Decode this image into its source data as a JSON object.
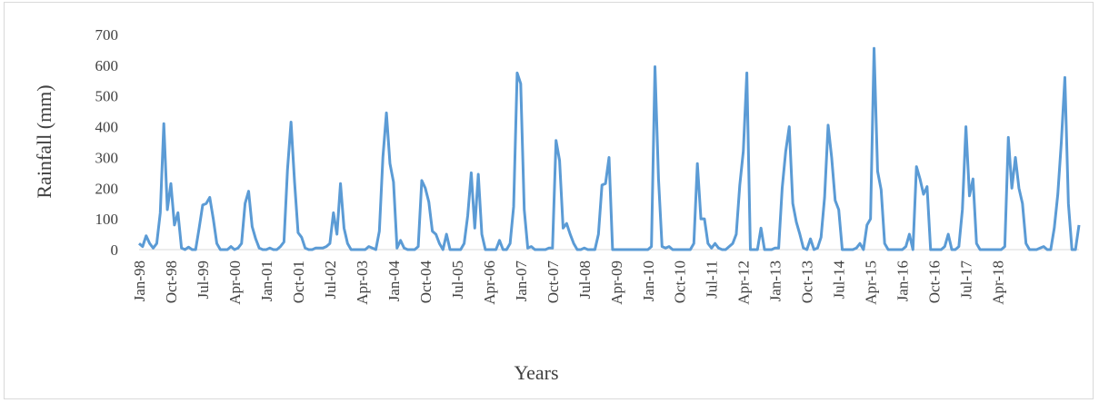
{
  "chart_data": {
    "type": "line",
    "title": "",
    "xlabel": "Years",
    "ylabel": "Rainfall (mm)",
    "ylim": [
      0,
      700
    ],
    "yticks": [
      0,
      100,
      200,
      300,
      400,
      500,
      600,
      700
    ],
    "grid": false,
    "legend": "none",
    "line_color": "#5b9bd5",
    "x_tick_labels": [
      "Jan-98",
      "Oct-98",
      "Jul-99",
      "Apr-00",
      "Jan-01",
      "Oct-01",
      "Jul-02",
      "Apr-03",
      "Jan-04",
      "Oct-04",
      "Jul-05",
      "Apr-06",
      "Jan-07",
      "Oct-07",
      "Jul-08",
      "Apr-09",
      "Jan-10",
      "Oct-10",
      "Jul-11",
      "Apr-12",
      "Jan-13",
      "Oct-13",
      "Jul-14",
      "Apr-15",
      "Jan-16",
      "Oct-16",
      "Jul-17",
      "Apr-18"
    ],
    "series": [
      {
        "values": [
          20,
          10,
          45,
          20,
          5,
          20,
          120,
          410,
          130,
          215,
          80,
          120,
          5,
          0,
          8,
          0,
          0,
          70,
          145,
          150,
          170,
          100,
          20,
          0,
          0,
          0,
          10,
          0,
          5,
          20,
          150,
          190,
          75,
          35,
          5,
          0,
          0,
          5,
          0,
          0,
          10,
          25,
          260,
          415,
          220,
          55,
          40,
          5,
          0,
          0,
          5,
          5,
          5,
          10,
          20,
          120,
          50,
          215,
          70,
          20,
          0,
          0,
          0,
          0,
          0,
          10,
          5,
          0,
          60,
          300,
          445,
          280,
          220,
          5,
          30,
          5,
          0,
          0,
          0,
          10,
          225,
          200,
          155,
          60,
          50,
          20,
          0,
          50,
          0,
          0,
          0,
          0,
          20,
          110,
          250,
          70,
          245,
          50,
          0,
          0,
          0,
          0,
          30,
          0,
          0,
          20,
          140,
          575,
          540,
          130,
          5,
          10,
          0,
          0,
          0,
          0,
          5,
          5,
          355,
          290,
          70,
          85,
          50,
          20,
          0,
          0,
          5,
          0,
          0,
          0,
          50,
          210,
          215,
          300,
          0,
          0,
          0,
          0,
          0,
          0,
          0,
          0,
          0,
          0,
          0,
          10,
          595,
          230,
          10,
          5,
          10,
          0,
          0,
          0,
          0,
          0,
          0,
          20,
          280,
          100,
          100,
          20,
          5,
          20,
          5,
          0,
          0,
          10,
          20,
          50,
          210,
          320,
          575,
          0,
          0,
          0,
          70,
          0,
          0,
          0,
          5,
          5,
          200,
          320,
          400,
          150,
          90,
          50,
          5,
          0,
          35,
          0,
          5,
          40,
          170,
          405,
          300,
          160,
          130,
          0,
          0,
          0,
          0,
          5,
          20,
          0,
          80,
          100,
          655,
          255,
          195,
          20,
          0,
          0,
          0,
          0,
          0,
          10,
          50,
          0,
          270,
          230,
          180,
          205,
          0,
          0,
          0,
          0,
          10,
          50,
          0,
          0,
          10,
          130,
          400,
          175,
          230,
          20,
          0,
          0,
          0,
          0,
          0,
          0,
          0,
          10,
          365,
          200,
          300,
          200,
          150,
          20,
          0,
          0,
          0,
          5,
          10,
          0,
          0,
          70,
          180,
          350,
          560,
          150,
          0,
          0,
          80
        ]
      }
    ]
  }
}
